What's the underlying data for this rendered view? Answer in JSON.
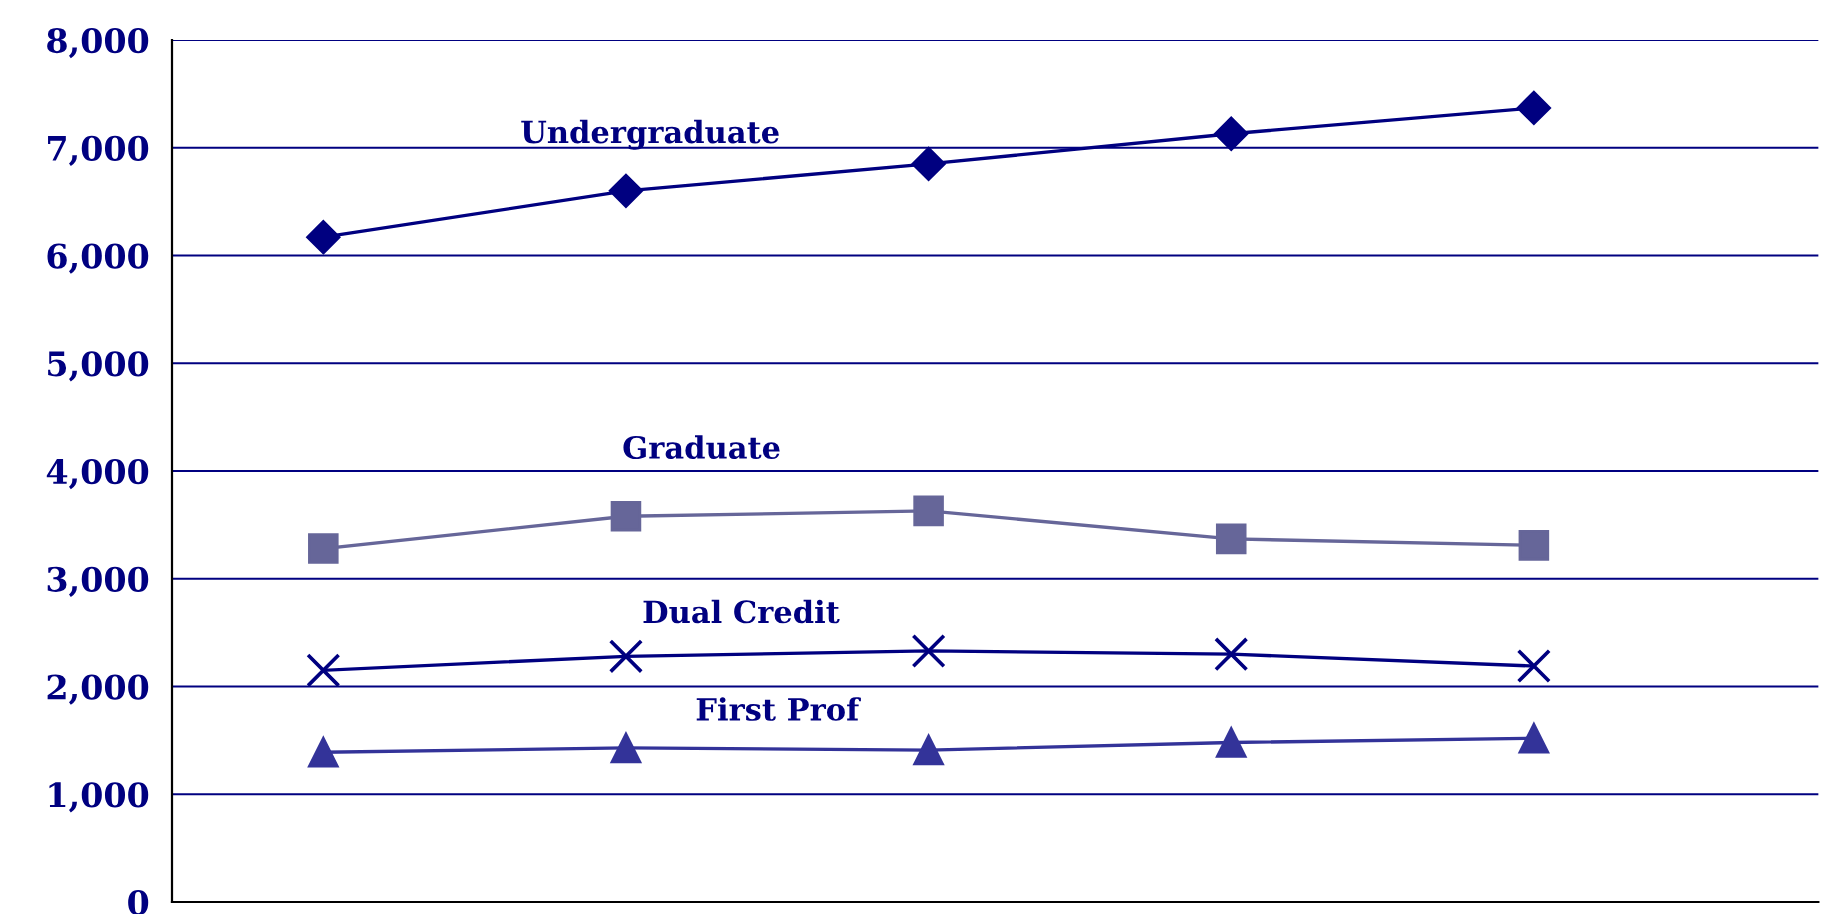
{
  "chart_data": {
    "type": "line",
    "categories": [
      null,
      null,
      null,
      null,
      null
    ],
    "series": [
      {
        "name": "Undergraduate",
        "color": "#000080",
        "marker": "diamond",
        "values": [
          6170,
          6600,
          6850,
          7130,
          7370
        ]
      },
      {
        "name": "Graduate",
        "color": "#666699",
        "marker": "square",
        "values": [
          3280,
          3580,
          3630,
          3370,
          3310
        ]
      },
      {
        "name": "Dual Credit",
        "color": "#000080",
        "marker": "cross",
        "values": [
          2150,
          2280,
          2330,
          2300,
          2190
        ]
      },
      {
        "name": "First Prof",
        "color": "#333399",
        "marker": "triangle",
        "values": [
          1390,
          1430,
          1410,
          1480,
          1520
        ]
      }
    ],
    "ylim": [
      0,
      8000
    ],
    "yticks": [
      0,
      {
        "value": 1000,
        "label": "1,000"
      },
      {
        "value": 2000,
        "label": "2,000"
      },
      {
        "value": 3000,
        "label": "3,000"
      },
      {
        "value": 4000,
        "label": "4,000"
      },
      {
        "value": 5000,
        "label": "5,000"
      },
      {
        "value": 6000,
        "label": "6,000"
      },
      {
        "value": 7000,
        "label": "7,000"
      },
      {
        "value": 8000,
        "label": "8,000"
      }
    ],
    "grid": "y",
    "legend": false,
    "tick_labels": "y"
  }
}
